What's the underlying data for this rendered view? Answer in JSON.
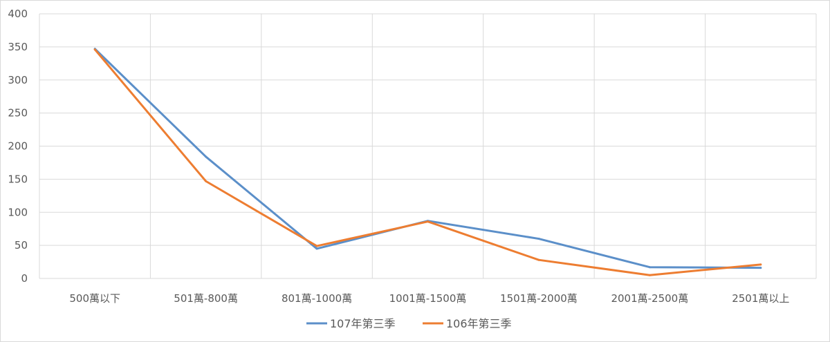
{
  "chart_data": {
    "type": "line",
    "categories": [
      "500萬以下",
      "501萬-800萬",
      "801萬-1000萬",
      "1001萬-1500萬",
      "1501萬-2000萬",
      "2001萬-2500萬",
      "2501萬以上"
    ],
    "series": [
      {
        "name": "107年第三季",
        "color": "#5b8fc9",
        "values": [
          347,
          184,
          45,
          87,
          60,
          17,
          16
        ]
      },
      {
        "name": "106年第三季",
        "color": "#ed7d31",
        "values": [
          346,
          147,
          49,
          86,
          28,
          5,
          21
        ]
      }
    ],
    "ylim": [
      0,
      400
    ],
    "yticks": [
      0,
      50,
      100,
      150,
      200,
      250,
      300,
      350,
      400
    ],
    "grid": true,
    "legend": "bottom"
  }
}
